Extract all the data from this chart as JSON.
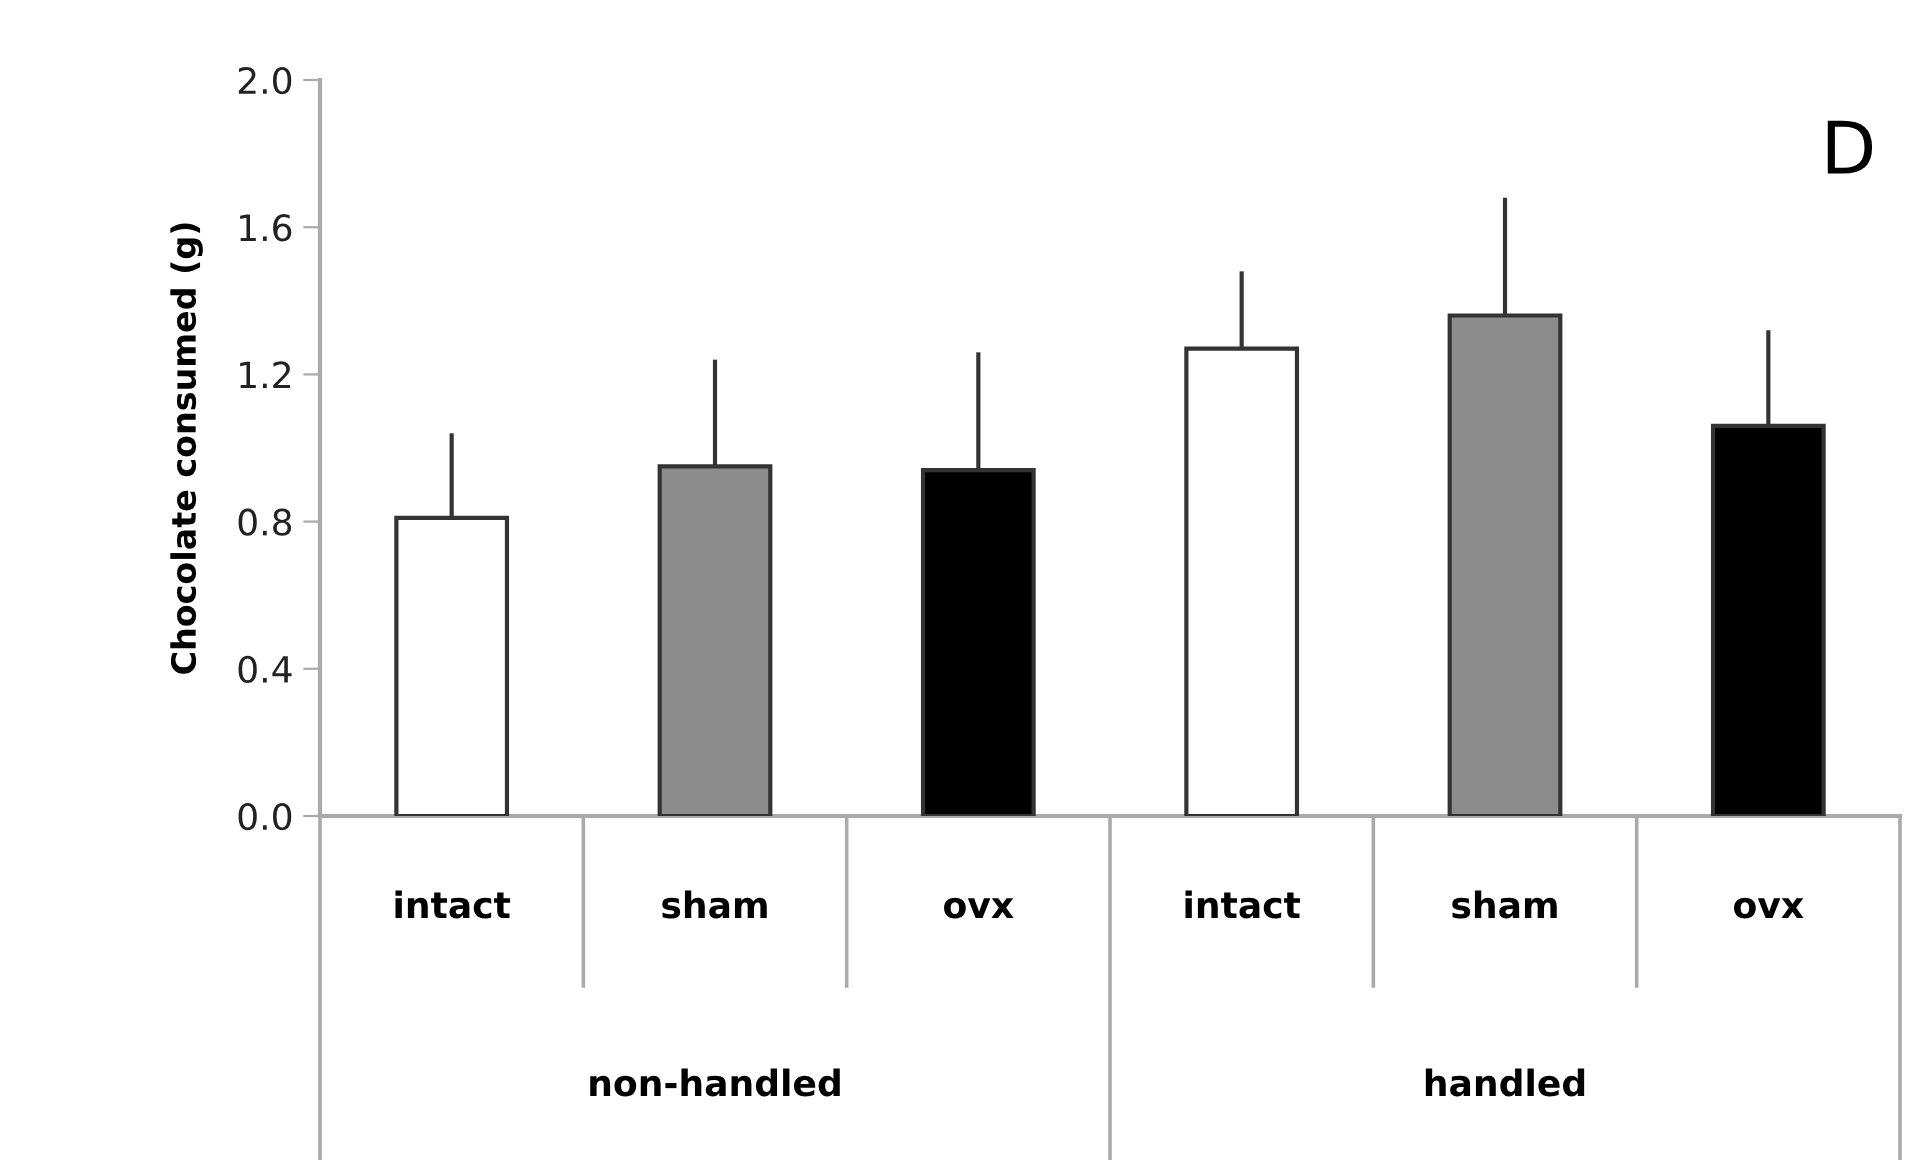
{
  "chart_data": {
    "type": "bar",
    "ylabel": "Chocolate consumed (g)",
    "categories": [
      "intact",
      "sham",
      "ovx",
      "intact",
      "sham",
      "ovx"
    ],
    "values": [
      0.81,
      0.95,
      0.94,
      1.27,
      1.36,
      1.06
    ],
    "colors": [
      "#ffffff",
      "#8c8c8c",
      "#000000",
      "#ffffff",
      "#8c8c8c",
      "#000000"
    ],
    "errors": [
      [
        0.81,
        1.04
      ],
      [
        0.95,
        1.24
      ],
      [
        0.94,
        1.26
      ],
      [
        1.27,
        1.48
      ],
      [
        1.36,
        1.68
      ],
      [
        1.06,
        1.32
      ]
    ],
    "ylim": [
      0,
      2.0
    ],
    "yticks": [
      {
        "value": 0,
        "label": "0.0"
      },
      {
        "value": 0.4,
        "label": "0.4"
      },
      {
        "value": 0.8,
        "label": "0.8"
      },
      {
        "value": 1.2,
        "label": "1.2"
      },
      {
        "value": 1.6,
        "label": "1.6"
      },
      {
        "value": 2.0,
        "label": "2.0"
      }
    ],
    "grid": false,
    "annotations": [
      "D",
      "non-handled",
      "handled"
    ]
  }
}
